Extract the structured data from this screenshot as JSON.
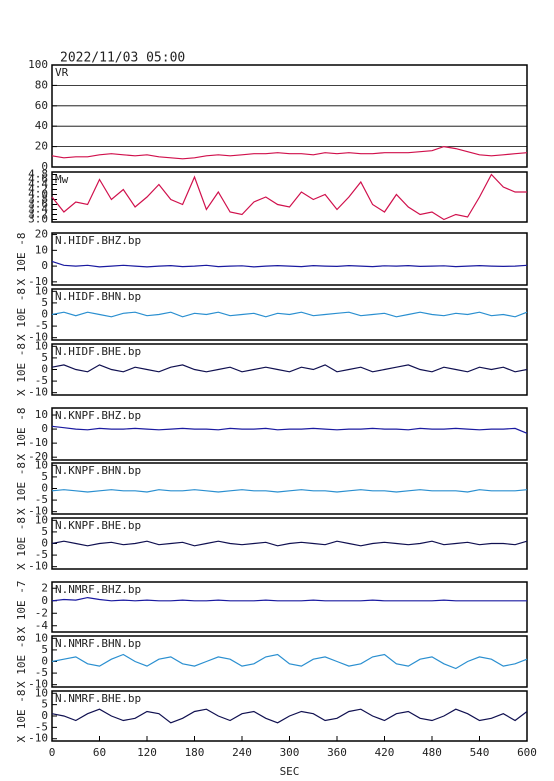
{
  "chart_data": [
    {
      "type": "line",
      "title": "2022/11/03 05:00",
      "panel_label": "VR",
      "color": "#d0104c",
      "grid": true,
      "xlim": [
        0,
        600
      ],
      "ylim": [
        0,
        100
      ],
      "yticks": [
        0,
        20,
        40,
        60,
        80,
        100
      ],
      "x": [
        0,
        15,
        30,
        45,
        60,
        75,
        90,
        105,
        120,
        135,
        150,
        165,
        180,
        195,
        210,
        225,
        240,
        255,
        270,
        285,
        300,
        315,
        330,
        345,
        360,
        375,
        390,
        405,
        420,
        435,
        450,
        465,
        480,
        495,
        510,
        525,
        540,
        555,
        570,
        585,
        600
      ],
      "values": [
        11,
        9,
        10,
        10,
        12,
        13,
        12,
        11,
        12,
        10,
        9,
        8,
        9,
        11,
        12,
        11,
        12,
        13,
        13,
        14,
        13,
        13,
        12,
        14,
        13,
        14,
        13,
        13,
        14,
        14,
        14,
        15,
        16,
        20,
        18,
        15,
        12,
        11,
        12,
        13,
        14
      ]
    },
    {
      "type": "line",
      "panel_label": "Mw",
      "color": "#d0104c",
      "xlim": [
        0,
        600
      ],
      "ylim": [
        2.9,
        4.9
      ],
      "yticks": [
        {
          "value": 3,
          "label": "3.0"
        },
        3.2,
        3.4,
        3.6,
        3.8,
        {
          "value": 4,
          "label": "4.0"
        },
        4.2,
        4.4,
        4.6,
        4.8
      ],
      "x": [
        0,
        15,
        30,
        45,
        60,
        75,
        90,
        105,
        120,
        135,
        150,
        165,
        180,
        195,
        210,
        225,
        240,
        255,
        270,
        285,
        300,
        315,
        330,
        345,
        360,
        375,
        390,
        405,
        420,
        435,
        450,
        465,
        480,
        495,
        510,
        525,
        540,
        555,
        570,
        585,
        600
      ],
      "values": [
        3.9,
        3.3,
        3.7,
        3.6,
        4.6,
        3.8,
        4.2,
        3.5,
        3.9,
        4.4,
        3.8,
        3.6,
        4.7,
        3.4,
        4.1,
        3.3,
        3.2,
        3.7,
        3.9,
        3.6,
        3.5,
        4.1,
        3.8,
        4.0,
        3.4,
        3.9,
        4.5,
        3.6,
        3.3,
        4.0,
        3.5,
        3.2,
        3.3,
        3.0,
        3.2,
        3.1,
        3.9,
        4.8,
        4.3,
        4.1,
        4.1
      ]
    },
    {
      "type": "line",
      "panel_label": "N.HIDF.BHZ.bp",
      "ylabel": "X 10E -8",
      "color": "#1a1aa0",
      "xlim": [
        0,
        600
      ],
      "ylim": [
        -12,
        21
      ],
      "yticks": [
        -10,
        0,
        10,
        20
      ],
      "x": [
        0,
        15,
        30,
        45,
        60,
        75,
        90,
        105,
        120,
        135,
        150,
        165,
        180,
        195,
        210,
        225,
        240,
        255,
        270,
        285,
        300,
        315,
        330,
        345,
        360,
        375,
        390,
        405,
        420,
        435,
        450,
        465,
        480,
        495,
        510,
        525,
        540,
        555,
        570,
        585,
        600
      ],
      "values": [
        3,
        0.5,
        0,
        0.5,
        -0.5,
        0,
        0.5,
        0,
        -0.5,
        0,
        0.3,
        -0.3,
        0,
        0.5,
        -0.3,
        0,
        0.2,
        -0.5,
        0,
        0.3,
        0,
        -0.3,
        0.3,
        0,
        -0.2,
        0.3,
        0,
        -0.3,
        0.2,
        0,
        0.3,
        -0.2,
        0,
        0.2,
        -0.3,
        0,
        0.3,
        0,
        -0.2,
        0,
        0.5
      ]
    },
    {
      "type": "line",
      "panel_label": "N.HIDF.BHN.bp",
      "ylabel": "X 10E -8",
      "color": "#2a8fd0",
      "xlim": [
        0,
        600
      ],
      "ylim": [
        -11,
        11
      ],
      "yticks": [
        -10,
        -5,
        0,
        5,
        10
      ],
      "x": [
        0,
        15,
        30,
        45,
        60,
        75,
        90,
        105,
        120,
        135,
        150,
        165,
        180,
        195,
        210,
        225,
        240,
        255,
        270,
        285,
        300,
        315,
        330,
        345,
        360,
        375,
        390,
        405,
        420,
        435,
        450,
        465,
        480,
        495,
        510,
        525,
        540,
        555,
        570,
        585,
        600
      ],
      "values": [
        0,
        1,
        -0.5,
        1,
        0,
        -1,
        0.5,
        1,
        -0.5,
        0,
        1,
        -1,
        0.5,
        0,
        1,
        -0.5,
        0,
        0.5,
        -1,
        0.5,
        0,
        1,
        -0.5,
        0,
        0.5,
        1,
        -0.5,
        0,
        0.5,
        -1,
        0,
        1,
        0,
        -0.5,
        0.5,
        0,
        1,
        -0.5,
        0,
        -1,
        1
      ]
    },
    {
      "type": "line",
      "panel_label": "N.HIDF.BHE.bp",
      "ylabel": "X 10E -8",
      "color": "#101050",
      "xlim": [
        0,
        600
      ],
      "ylim": [
        -11,
        11
      ],
      "yticks": [
        -10,
        -5,
        0,
        5,
        10
      ],
      "x": [
        0,
        15,
        30,
        45,
        60,
        75,
        90,
        105,
        120,
        135,
        150,
        165,
        180,
        195,
        210,
        225,
        240,
        255,
        270,
        285,
        300,
        315,
        330,
        345,
        360,
        375,
        390,
        405,
        420,
        435,
        450,
        465,
        480,
        495,
        510,
        525,
        540,
        555,
        570,
        585,
        600
      ],
      "values": [
        1,
        2,
        0,
        -1,
        2,
        0,
        -1,
        1,
        0,
        -1,
        1,
        2,
        0,
        -1,
        0,
        1,
        -1,
        0,
        1,
        0,
        -1,
        1,
        0,
        2,
        -1,
        0,
        1,
        -1,
        0,
        1,
        2,
        0,
        -1,
        1,
        0,
        -1,
        1,
        0,
        1,
        -1,
        0
      ]
    },
    {
      "type": "line",
      "panel_label": "N.KNPF.BHZ.bp",
      "ylabel": "X 10E -8",
      "color": "#1a1aa0",
      "xlim": [
        0,
        600
      ],
      "ylim": [
        -22,
        15
      ],
      "yticks": [
        -20,
        -10,
        0,
        10
      ],
      "x": [
        0,
        15,
        30,
        45,
        60,
        75,
        90,
        105,
        120,
        135,
        150,
        165,
        180,
        195,
        210,
        225,
        240,
        255,
        270,
        285,
        300,
        315,
        330,
        345,
        360,
        375,
        390,
        405,
        420,
        435,
        450,
        465,
        480,
        495,
        510,
        525,
        540,
        555,
        570,
        585,
        600
      ],
      "values": [
        2,
        1,
        0,
        -0.5,
        0.5,
        0,
        0,
        0.5,
        0,
        -0.5,
        0,
        0.5,
        0,
        0,
        -0.5,
        0.5,
        0,
        0,
        0.5,
        -0.5,
        0,
        0,
        0.5,
        0,
        -0.5,
        0,
        0,
        0.5,
        0,
        0,
        -0.5,
        0.5,
        0,
        0,
        0.5,
        0,
        -0.5,
        0,
        0,
        0.5,
        -3
      ]
    },
    {
      "type": "line",
      "panel_label": "N.KNPF.BHN.bp",
      "ylabel": "X 10E -8",
      "color": "#2a8fd0",
      "xlim": [
        0,
        600
      ],
      "ylim": [
        -11,
        11
      ],
      "yticks": [
        -10,
        -5,
        0,
        5,
        10
      ],
      "x": [
        0,
        15,
        30,
        45,
        60,
        75,
        90,
        105,
        120,
        135,
        150,
        165,
        180,
        195,
        210,
        225,
        240,
        255,
        270,
        285,
        300,
        315,
        330,
        345,
        360,
        375,
        390,
        405,
        420,
        435,
        450,
        465,
        480,
        495,
        510,
        525,
        540,
        555,
        570,
        585,
        600
      ],
      "values": [
        -1,
        -0.5,
        -1,
        -1.5,
        -1,
        -0.5,
        -1,
        -1,
        -1.5,
        -0.5,
        -1,
        -1,
        -0.5,
        -1,
        -1.5,
        -1,
        -0.5,
        -1,
        -1,
        -1.5,
        -1,
        -0.5,
        -1,
        -1,
        -1.5,
        -1,
        -0.5,
        -1,
        -1,
        -1.5,
        -1,
        -0.5,
        -1,
        -1,
        -1,
        -1.5,
        -0.5,
        -1,
        -1,
        -1,
        -0.5
      ]
    },
    {
      "type": "line",
      "panel_label": "N.KNPF.BHE.bp",
      "ylabel": "X 10E -8",
      "color": "#101050",
      "xlim": [
        0,
        600
      ],
      "ylim": [
        -11,
        11
      ],
      "yticks": [
        -10,
        -5,
        0,
        5,
        10
      ],
      "x": [
        0,
        15,
        30,
        45,
        60,
        75,
        90,
        105,
        120,
        135,
        150,
        165,
        180,
        195,
        210,
        225,
        240,
        255,
        270,
        285,
        300,
        315,
        330,
        345,
        360,
        375,
        390,
        405,
        420,
        435,
        450,
        465,
        480,
        495,
        510,
        525,
        540,
        555,
        570,
        585,
        600
      ],
      "values": [
        0,
        1,
        0,
        -1,
        0,
        0.5,
        -0.5,
        0,
        1,
        -0.5,
        0,
        0.5,
        -1,
        0,
        1,
        0,
        -0.5,
        0,
        0.5,
        -1,
        0,
        0.5,
        0,
        -0.5,
        1,
        0,
        -1,
        0,
        0.5,
        0,
        -0.5,
        0,
        1,
        -0.5,
        0,
        0.5,
        -0.5,
        0,
        0,
        -0.5,
        1
      ]
    },
    {
      "type": "line",
      "panel_label": "N.NMRF.BHZ.bp",
      "ylabel": "X 10E -7",
      "color": "#1a1aa0",
      "xlim": [
        0,
        600
      ],
      "ylim": [
        -5,
        3
      ],
      "yticks": [
        -4,
        -2,
        0,
        2
      ],
      "x": [
        0,
        15,
        30,
        45,
        60,
        75,
        90,
        105,
        120,
        135,
        150,
        165,
        180,
        195,
        210,
        225,
        240,
        255,
        270,
        285,
        300,
        315,
        330,
        345,
        360,
        375,
        390,
        405,
        420,
        435,
        450,
        465,
        480,
        495,
        510,
        525,
        540,
        555,
        570,
        585,
        600
      ],
      "values": [
        0,
        0.2,
        0.1,
        0.5,
        0.2,
        0,
        0.1,
        0,
        0.1,
        0,
        0,
        0.1,
        0,
        0,
        0.1,
        0,
        0,
        0,
        0.1,
        0,
        0,
        0,
        0.1,
        0,
        0,
        0,
        0,
        0.1,
        0,
        0,
        0,
        0,
        0,
        0.1,
        0,
        0,
        0,
        0,
        0,
        0,
        0
      ]
    },
    {
      "type": "line",
      "panel_label": "N.NMRF.BHN.bp",
      "ylabel": "X 10E -8",
      "color": "#2a8fd0",
      "xlim": [
        0,
        600
      ],
      "ylim": [
        -11,
        11
      ],
      "yticks": [
        -10,
        -5,
        0,
        5,
        10
      ],
      "x": [
        0,
        15,
        30,
        45,
        60,
        75,
        90,
        105,
        120,
        135,
        150,
        165,
        180,
        195,
        210,
        225,
        240,
        255,
        270,
        285,
        300,
        315,
        330,
        345,
        360,
        375,
        390,
        405,
        420,
        435,
        450,
        465,
        480,
        495,
        510,
        525,
        540,
        555,
        570,
        585,
        600
      ],
      "values": [
        0,
        1,
        2,
        -1,
        -2,
        1,
        3,
        0,
        -2,
        1,
        2,
        -1,
        -2,
        0,
        2,
        1,
        -2,
        -1,
        2,
        3,
        -1,
        -2,
        1,
        2,
        0,
        -2,
        -1,
        2,
        3,
        -1,
        -2,
        1,
        2,
        -1,
        -3,
        0,
        2,
        1,
        -2,
        -1,
        1
      ]
    },
    {
      "type": "line",
      "panel_label": "N.NMRF.BHE.bp",
      "ylabel": "X 10E -8",
      "color": "#101050",
      "xlim": [
        0,
        600
      ],
      "ylim": [
        -11,
        11
      ],
      "yticks": [
        -10,
        -5,
        0,
        5,
        10
      ],
      "xticks": [
        0,
        60,
        120,
        180,
        240,
        300,
        360,
        420,
        480,
        540,
        600
      ],
      "xlabel": "SEC",
      "x": [
        0,
        15,
        30,
        45,
        60,
        75,
        90,
        105,
        120,
        135,
        150,
        165,
        180,
        195,
        210,
        225,
        240,
        255,
        270,
        285,
        300,
        315,
        330,
        345,
        360,
        375,
        390,
        405,
        420,
        435,
        450,
        465,
        480,
        495,
        510,
        525,
        540,
        555,
        570,
        585,
        600
      ],
      "values": [
        1,
        0,
        -2,
        1,
        3,
        0,
        -2,
        -1,
        2,
        1,
        -3,
        -1,
        2,
        3,
        0,
        -2,
        1,
        2,
        -1,
        -3,
        0,
        2,
        1,
        -2,
        -1,
        2,
        3,
        0,
        -2,
        1,
        2,
        -1,
        -2,
        0,
        3,
        1,
        -2,
        -1,
        1,
        -2,
        2
      ]
    }
  ]
}
